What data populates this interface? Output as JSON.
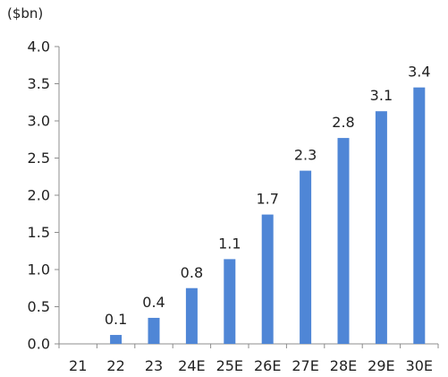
{
  "chart_data": {
    "type": "bar",
    "unit_label": "($bn)",
    "categories": [
      "21",
      "22",
      "23",
      "24E",
      "25E",
      "26E",
      "27E",
      "28E",
      "29E",
      "30E"
    ],
    "values": [
      0.0,
      0.12,
      0.35,
      0.75,
      1.14,
      1.74,
      2.33,
      2.77,
      3.13,
      3.45
    ],
    "data_labels": [
      "",
      "0.1",
      "0.4",
      "0.8",
      "1.1",
      "1.7",
      "2.3",
      "2.8",
      "3.1",
      "3.4"
    ],
    "y_ticks": [
      "0.0",
      "0.5",
      "1.0",
      "1.5",
      "2.0",
      "2.5",
      "3.0",
      "3.5",
      "4.0"
    ],
    "ylim": [
      0,
      4.0
    ],
    "grid": false,
    "legend": "none",
    "bar_color": "#4f86d6",
    "axis_color": "#8c8c8c"
  }
}
